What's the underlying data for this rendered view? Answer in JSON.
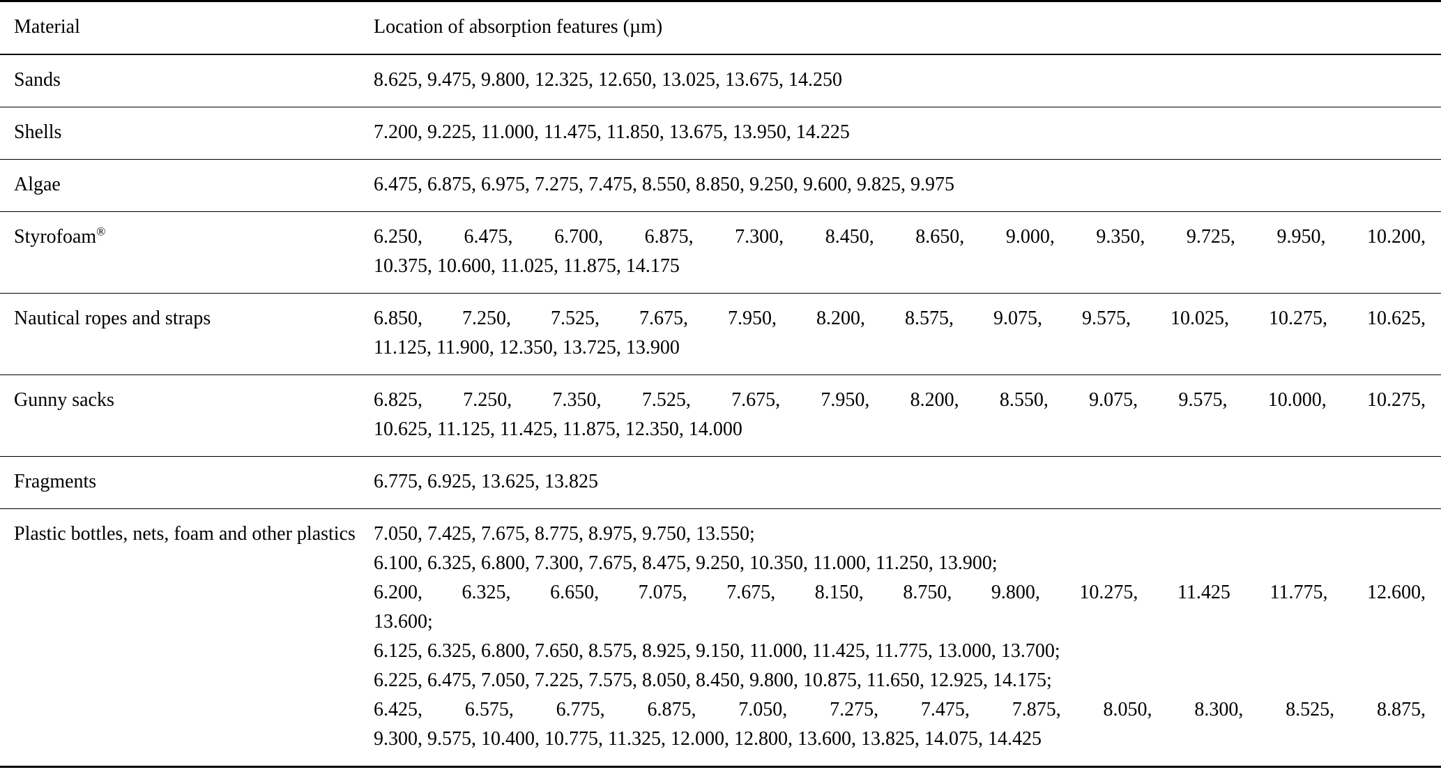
{
  "table": {
    "columns": [
      "Material",
      "Location of absorption features (µm)"
    ],
    "rows": [
      {
        "material": "Sands",
        "feature_lines": [
          {
            "text": "8.625, 9.475, 9.800, 12.325, 12.650, 13.025, 13.675, 14.250",
            "stretch": false
          }
        ]
      },
      {
        "material": "Shells",
        "feature_lines": [
          {
            "text": "7.200, 9.225, 11.000, 11.475, 11.850, 13.675, 13.950, 14.225",
            "stretch": false
          }
        ]
      },
      {
        "material": "Algae",
        "feature_lines": [
          {
            "text": "6.475, 6.875, 6.975, 7.275, 7.475, 8.550, 8.850, 9.250, 9.600, 9.825, 9.975",
            "stretch": false
          }
        ]
      },
      {
        "material": "Styrofoam",
        "material_mark": "®",
        "feature_lines": [
          {
            "text": "6.250, 6.475, 6.700, 6.875, 7.300, 8.450, 8.650, 9.000, 9.350, 9.725, 9.950, 10.200,",
            "stretch": true
          },
          {
            "text": "10.375, 10.600, 11.025, 11.875, 14.175",
            "stretch": false
          }
        ]
      },
      {
        "material": "Nautical ropes and straps",
        "feature_lines": [
          {
            "text": "6.850, 7.250, 7.525, 7.675, 7.950, 8.200, 8.575, 9.075, 9.575, 10.025, 10.275, 10.625,",
            "stretch": true
          },
          {
            "text": "11.125, 11.900, 12.350, 13.725, 13.900",
            "stretch": false
          }
        ]
      },
      {
        "material": "Gunny sacks",
        "feature_lines": [
          {
            "text": "6.825, 7.250, 7.350, 7.525, 7.675, 7.950, 8.200, 8.550, 9.075, 9.575, 10.000, 10.275,",
            "stretch": true
          },
          {
            "text": "10.625, 11.125, 11.425, 11.875, 12.350, 14.000",
            "stretch": false
          }
        ]
      },
      {
        "material": "Fragments",
        "feature_lines": [
          {
            "text": "6.775, 6.925, 13.625, 13.825",
            "stretch": false
          }
        ]
      },
      {
        "material": "Plastic bottles, nets, foam and other plastics",
        "feature_lines": [
          {
            "text": "7.050, 7.425, 7.675, 8.775, 8.975, 9.750, 13.550;",
            "stretch": false
          },
          {
            "text": "6.100, 6.325, 6.800, 7.300, 7.675, 8.475, 9.250, 10.350, 11.000, 11.250, 13.900;",
            "stretch": false
          },
          {
            "text": "6.200, 6.325, 6.650, 7.075, 7.675, 8.150, 8.750, 9.800, 10.275, 11.425 11.775, 12.600,",
            "stretch": true
          },
          {
            "text": "13.600;",
            "stretch": false
          },
          {
            "text": "6.125, 6.325, 6.800, 7.650, 8.575, 8.925, 9.150, 11.000, 11.425, 11.775, 13.000, 13.700;",
            "stretch": false
          },
          {
            "text": "6.225, 6.475, 7.050, 7.225, 7.575, 8.050, 8.450, 9.800, 10.875, 11.650, 12.925, 14.175;",
            "stretch": false
          },
          {
            "text": "6.425, 6.575, 6.775, 6.875, 7.050, 7.275, 7.475, 7.875, 8.050, 8.300, 8.525, 8.875,",
            "stretch": true
          },
          {
            "text": "9.300, 9.575, 10.400, 10.775, 11.325, 12.000, 12.800, 13.600, 13.825, 14.075, 14.425",
            "stretch": false
          }
        ]
      }
    ]
  }
}
